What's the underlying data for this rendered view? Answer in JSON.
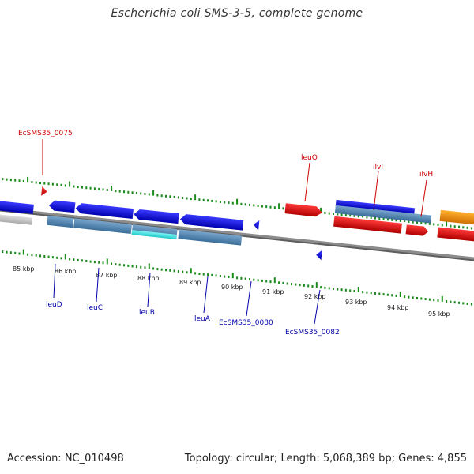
{
  "header": {
    "title": "Escherichia coli SMS-3-5, complete genome"
  },
  "footer": {
    "accession": "Accession: NC_010498",
    "topology": "Topology: circular; Length: 5,068,389 bp; Genes: 4,855"
  },
  "ticks": [
    "85 kbp",
    "86 kbp",
    "87 kbp",
    "88 kbp",
    "89 kbp",
    "90 kbp",
    "91 kbp",
    "92 kbp",
    "93 kbp",
    "94 kbp",
    "95 kbp"
  ],
  "forward_labels": [
    "EcSMS35_0075",
    "leuO",
    "ilvI",
    "ilvH"
  ],
  "reverse_labels": [
    "leuD",
    "leuC",
    "leuB",
    "leuA",
    "EcSMS35_0080",
    "EcSMS35_0082"
  ],
  "colors": {
    "forward": "#e01010",
    "reverse": "#1010e0",
    "label_forward": "#cc0000",
    "label_reverse": "#0000aa",
    "rna": "#f08c00",
    "tick": "#1a8a1a",
    "backbone": "#888888",
    "highlight": "#40e0e0",
    "steel": "#4682b4"
  }
}
